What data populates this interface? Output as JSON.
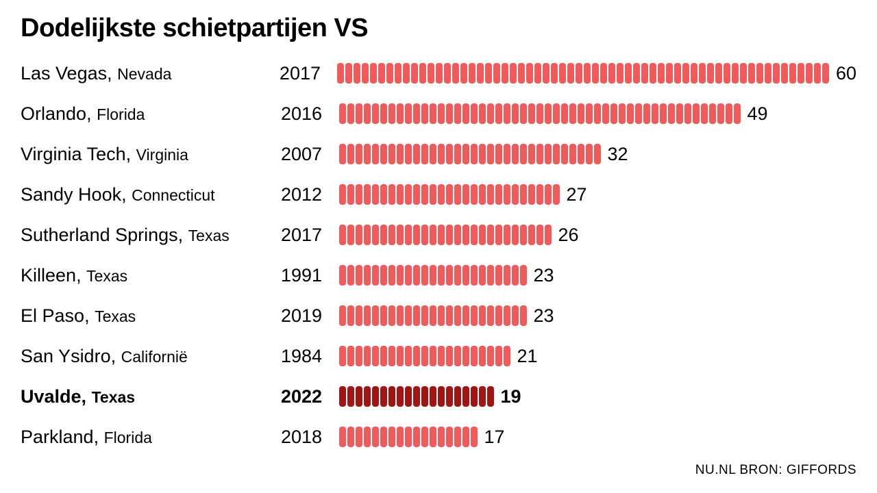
{
  "chart": {
    "type": "unit-bar",
    "title": "Dodelijkste schietpartijen VS",
    "title_fontsize": 38,
    "title_fontweight": 800,
    "background_color": "#ffffff",
    "text_color": "#000000",
    "unit_color_normal": "#f05a5a",
    "unit_color_emphasis": "#a21515",
    "unit_width": 9.5,
    "unit_height": 30,
    "unit_gap": 2.5,
    "unit_border_radius": 4,
    "row_gap": 19,
    "location_col_width": 380,
    "year_col_width": 85,
    "city_fontsize": 27,
    "state_fontsize": 23,
    "value_fontsize": 27,
    "source": "NU.NL BRON: GIFFORDS",
    "source_fontsize": 19,
    "rows": [
      {
        "city": "Las Vegas",
        "state": "Nevada",
        "year": "2017",
        "value": 60,
        "emphasis": false
      },
      {
        "city": "Orlando",
        "state": "Florida",
        "year": "2016",
        "value": 49,
        "emphasis": false
      },
      {
        "city": "Virginia Tech",
        "state": "Virginia",
        "year": "2007",
        "value": 32,
        "emphasis": false
      },
      {
        "city": "Sandy Hook",
        "state": "Connecticut",
        "year": "2012",
        "value": 27,
        "emphasis": false
      },
      {
        "city": "Sutherland Springs",
        "state": "Texas",
        "year": "2017",
        "value": 26,
        "emphasis": false
      },
      {
        "city": "Killeen",
        "state": "Texas",
        "year": "1991",
        "value": 23,
        "emphasis": false
      },
      {
        "city": "El Paso",
        "state": "Texas",
        "year": "2019",
        "value": 23,
        "emphasis": false
      },
      {
        "city": "San Ysidro",
        "state": "Californië",
        "year": "1984",
        "value": 21,
        "emphasis": false
      },
      {
        "city": "Uvalde",
        "state": "Texas",
        "year": "2022",
        "value": 19,
        "emphasis": true
      },
      {
        "city": "Parkland",
        "state": "Florida",
        "year": "2018",
        "value": 17,
        "emphasis": false
      }
    ]
  }
}
